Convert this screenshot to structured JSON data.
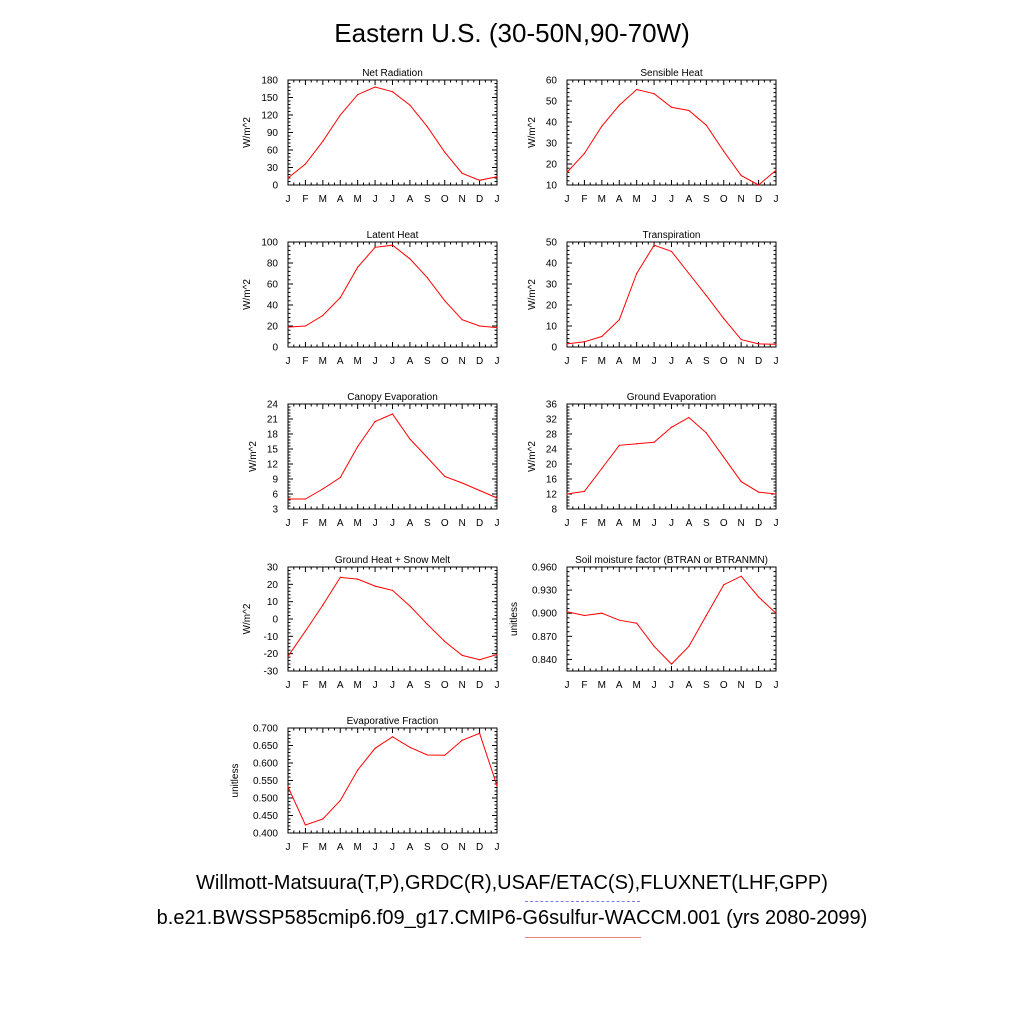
{
  "title": "Eastern U.S. (30-50N,90-70W)",
  "footer_line1": "Willmott-Matsuura(T,P),GRDC(R),USAF/ETAC(S),FLUXNET(LHF,GPP)",
  "footer_line2": "b.e21.BWSSP585cmip6.f09_g17.CMIP6-G6sulfur-WACCM.001 (yrs 2080-2099)",
  "colors": {
    "series": "#ff0000",
    "footer_dash_blue": "#7a7af0",
    "footer_dash_red": "#f08080"
  },
  "chart_data": [
    {
      "type": "line",
      "title": "Net Radiation",
      "ylabel": "W/m^2",
      "categories": [
        "J",
        "F",
        "M",
        "A",
        "M",
        "J",
        "J",
        "A",
        "S",
        "O",
        "N",
        "D",
        "J"
      ],
      "values": [
        12,
        36,
        75,
        120,
        155,
        168,
        160,
        137,
        100,
        56,
        20,
        8,
        14
      ],
      "ylim": [
        0,
        180
      ],
      "yticks": [
        "0",
        "30",
        "60",
        "90",
        "120",
        "150",
        "180"
      ]
    },
    {
      "type": "line",
      "title": "Sensible Heat",
      "ylabel": "W/m^2",
      "categories": [
        "J",
        "F",
        "M",
        "A",
        "M",
        "J",
        "J",
        "A",
        "S",
        "O",
        "N",
        "D",
        "J"
      ],
      "values": [
        16,
        25,
        38,
        48,
        55.5,
        53.5,
        47,
        45.5,
        38.5,
        26,
        14.5,
        10,
        17
      ],
      "ylim": [
        10,
        60
      ],
      "yticks": [
        "10",
        "20",
        "30",
        "40",
        "50",
        "60"
      ]
    },
    {
      "type": "line",
      "title": "Latent Heat",
      "ylabel": "W/m^2",
      "categories": [
        "J",
        "F",
        "M",
        "A",
        "M",
        "J",
        "J",
        "A",
        "S",
        "O",
        "N",
        "D",
        "J"
      ],
      "values": [
        19,
        20,
        30,
        47,
        76,
        95,
        97,
        84,
        66,
        44,
        26,
        20,
        18.5
      ],
      "ylim": [
        0,
        100
      ],
      "yticks": [
        "0",
        "20",
        "40",
        "60",
        "80",
        "100"
      ]
    },
    {
      "type": "line",
      "title": "Transpiration",
      "ylabel": "W/m^2",
      "categories": [
        "J",
        "F",
        "M",
        "A",
        "M",
        "J",
        "J",
        "A",
        "S",
        "O",
        "N",
        "D",
        "J"
      ],
      "values": [
        1.5,
        2.5,
        5,
        13,
        35,
        48.5,
        45.5,
        35,
        24.5,
        13.5,
        3.5,
        1.5,
        1.3
      ],
      "ylim": [
        0,
        50
      ],
      "yticks": [
        "0",
        "10",
        "20",
        "30",
        "40",
        "50"
      ]
    },
    {
      "type": "line",
      "title": "Canopy Evaporation",
      "ylabel": "W/m^2",
      "categories": [
        "J",
        "F",
        "M",
        "A",
        "M",
        "J",
        "J",
        "A",
        "S",
        "O",
        "N",
        "D",
        "J"
      ],
      "values": [
        5,
        5,
        7,
        9.3,
        15.5,
        20.5,
        22,
        17,
        13.3,
        9.5,
        8.2,
        6.7,
        5.2
      ],
      "ylim": [
        3,
        24
      ],
      "yticks": [
        "3",
        "6",
        "9",
        "12",
        "15",
        "18",
        "21",
        "24"
      ]
    },
    {
      "type": "line",
      "title": "Ground Evaporation",
      "ylabel": "W/m^2",
      "categories": [
        "J",
        "F",
        "M",
        "A",
        "M",
        "J",
        "J",
        "A",
        "S",
        "O",
        "N",
        "D",
        "J"
      ],
      "values": [
        12,
        12.7,
        18.8,
        25,
        25.4,
        25.8,
        29.8,
        32.4,
        28.3,
        21.8,
        15.3,
        12.5,
        12
      ],
      "ylim": [
        8,
        36
      ],
      "yticks": [
        "8",
        "12",
        "16",
        "20",
        "24",
        "28",
        "32",
        "36"
      ]
    },
    {
      "type": "line",
      "title": "Ground Heat + Snow Melt",
      "ylabel": "W/m^2",
      "categories": [
        "J",
        "F",
        "M",
        "A",
        "M",
        "J",
        "J",
        "A",
        "S",
        "O",
        "N",
        "D",
        "J"
      ],
      "values": [
        -21.5,
        -7,
        8,
        24,
        23,
        19,
        16.5,
        7.5,
        -3,
        -13,
        -21,
        -23.5,
        -20.5
      ],
      "ylim": [
        -30,
        30
      ],
      "yticks": [
        "-30",
        "-20",
        "-10",
        "0",
        "10",
        "20",
        "30"
      ]
    },
    {
      "type": "line",
      "title": "Soil moisture factor (BTRAN or BTRANMN)",
      "ylabel": "unitless",
      "categories": [
        "J",
        "F",
        "M",
        "A",
        "M",
        "J",
        "J",
        "A",
        "S",
        "O",
        "N",
        "D",
        "J"
      ],
      "values": [
        0.902,
        0.897,
        0.9,
        0.891,
        0.887,
        0.857,
        0.834,
        0.857,
        0.897,
        0.937,
        0.948,
        0.921,
        0.9
      ],
      "ylim": [
        0.825,
        0.96
      ],
      "yticks": [
        "0.840",
        "0.870",
        "0.900",
        "0.930",
        "0.960"
      ],
      "ytickvals": [
        0.84,
        0.87,
        0.9,
        0.93,
        0.96
      ]
    },
    {
      "type": "line",
      "title": "Evaporative Fraction",
      "ylabel": "unitless",
      "categories": [
        "J",
        "F",
        "M",
        "A",
        "M",
        "J",
        "J",
        "A",
        "S",
        "O",
        "N",
        "D",
        "J"
      ],
      "values": [
        0.532,
        0.423,
        0.44,
        0.493,
        0.58,
        0.642,
        0.675,
        0.645,
        0.623,
        0.622,
        0.665,
        0.685,
        0.535
      ],
      "ylim": [
        0.4,
        0.7
      ],
      "yticks": [
        "0.400",
        "0.450",
        "0.500",
        "0.550",
        "0.600",
        "0.650",
        "0.700"
      ]
    }
  ]
}
